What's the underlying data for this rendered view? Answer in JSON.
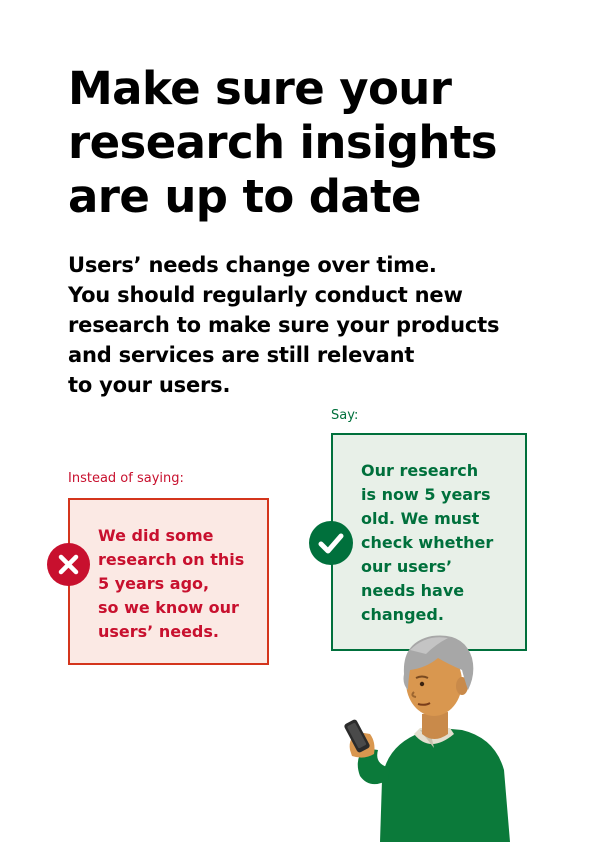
{
  "title_lines": [
    "Make sure your",
    "research insights",
    "are up to date"
  ],
  "intro_lines": [
    "Users’ needs change over time.",
    "You should regularly conduct new",
    "research to make sure your products",
    "and services are still relevant",
    "to your users."
  ],
  "bad_example": {
    "label": "Instead of saying:",
    "lines": [
      "We did some",
      "research on this",
      "5 years ago,",
      "so we know our",
      "users’ needs."
    ],
    "icon": "cross-icon",
    "color": "#c8102e"
  },
  "good_example": {
    "label": "Say:",
    "lines": [
      "Our research",
      "is now 5 years",
      "old. We must",
      "check whether",
      "our users’",
      "needs have",
      "changed."
    ],
    "icon": "check-icon",
    "color": "#00703c"
  },
  "illustration": "person-with-phone"
}
